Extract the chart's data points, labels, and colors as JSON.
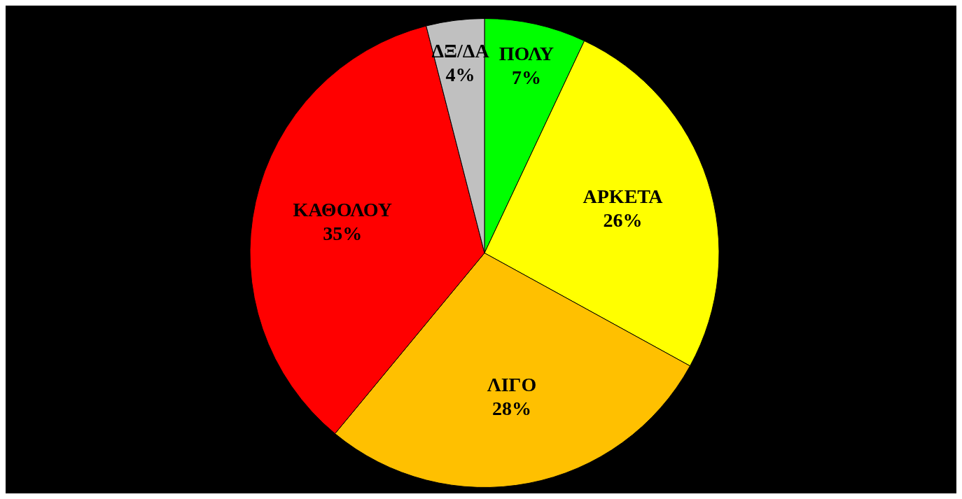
{
  "chart_data": {
    "type": "pie",
    "categories": [
      "ΠΟΛΥ",
      "ΑΡΚΕΤΑ",
      "ΛΙΓΟ",
      "ΚΑΘΟΛΟΥ",
      "ΔΞ/ΔΑ"
    ],
    "values": [
      7,
      26,
      28,
      35,
      4
    ],
    "colors": [
      "#00ff00",
      "#ffff00",
      "#ffc000",
      "#ff0000",
      "#c0c0c0"
    ],
    "value_labels": [
      "7%",
      "26%",
      "28%",
      "35%",
      "4%"
    ]
  }
}
